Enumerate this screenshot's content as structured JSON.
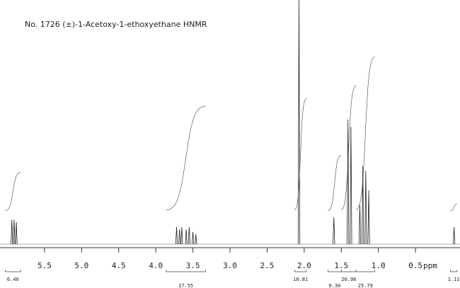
{
  "chart_data": {
    "type": "spectrum",
    "title": "No. 1726 (±)-1-Acetoxy-1-ethoxyethane HNMR",
    "x_label": "ppm",
    "xlim": [
      6.1,
      -0.1
    ],
    "xticks": [
      5.5,
      {
        "value": 5,
        "label": "5.0"
      },
      4.5,
      {
        "value": 4,
        "label": "4.0"
      },
      3.5,
      {
        "value": 3,
        "label": "3.0"
      },
      2.5,
      {
        "value": 2,
        "label": "2.0"
      },
      1.5,
      {
        "value": 1,
        "label": "1.0"
      },
      0.5
    ],
    "x": [
      5.94,
      5.91,
      5.88,
      3.72,
      3.68,
      3.65,
      3.59,
      3.55,
      3.5,
      3.46,
      2.07,
      1.6,
      1.41,
      1.37,
      1.25,
      1.21,
      1.17,
      1.13,
      -0.02
    ],
    "values": [
      10,
      10,
      9,
      7,
      6,
      7,
      6,
      7,
      5,
      4,
      100,
      11,
      51,
      48,
      16,
      32,
      30,
      22,
      7
    ],
    "color": "#222222",
    "integrals": [
      {
        "value": 6.46,
        "range": [
          6.03,
          5.82
        ]
      },
      {
        "value": 17.55,
        "range": [
          3.86,
          3.33
        ]
      },
      {
        "value": 18.81,
        "range": [
          2.13,
          1.97
        ]
      },
      {
        "value": 9.3,
        "label": "9.30",
        "range": [
          1.68,
          1.5
        ]
      },
      {
        "value": 20.98,
        "range": [
          1.5,
          1.3
        ]
      },
      {
        "value": 25.79,
        "range": [
          1.3,
          1.05
        ]
      },
      {
        "value": 1.11,
        "range": [
          0.03,
          -0.06
        ]
      }
    ]
  }
}
